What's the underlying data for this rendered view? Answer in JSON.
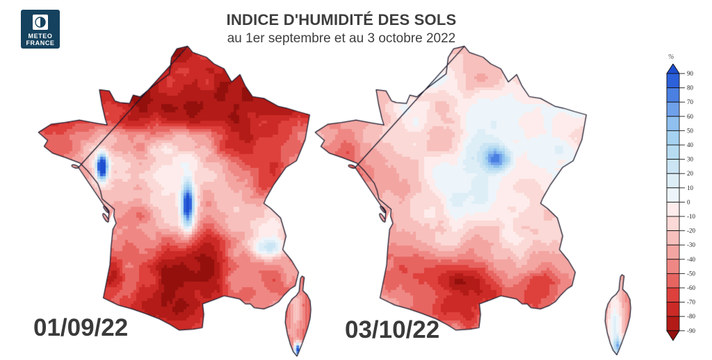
{
  "logo": {
    "brand_line1": "METEO",
    "brand_line2": "FRANCE",
    "bg_color": "#15425e"
  },
  "header": {
    "title": "INDICE D'HUMIDITÉ DES SOLS",
    "subtitle": "au 1er septembre et au 3 octobre 2022",
    "text_color": "#3e3e3e"
  },
  "maps": [
    {
      "date_label": "01/09/22"
    },
    {
      "date_label": "03/10/22"
    }
  ],
  "scale": {
    "unit": "%",
    "tick_labels": [
      "90",
      "80",
      "70",
      "60",
      "50",
      "40",
      "30",
      "20",
      "10",
      "0",
      "-10",
      "-20",
      "-30",
      "-40",
      "-50",
      "-60",
      "-70",
      "-80",
      "-90"
    ],
    "colors_top_to_bottom": [
      "#1d4ed0",
      "#2d61da",
      "#4a80e2",
      "#6fa0ea",
      "#8fc0ef",
      "#a5d2f1",
      "#b7dcf2",
      "#cbe5f4",
      "#deeef7",
      "#edf5fa",
      "#fdeceb",
      "#fbd9d6",
      "#f7c0bd",
      "#f3a5a1",
      "#ef8884",
      "#e76561",
      "#de403c",
      "#cb2a26",
      "#b21b17",
      "#93100d"
    ],
    "outline_color": "#111111"
  },
  "map_outline_color": "#17172a"
}
